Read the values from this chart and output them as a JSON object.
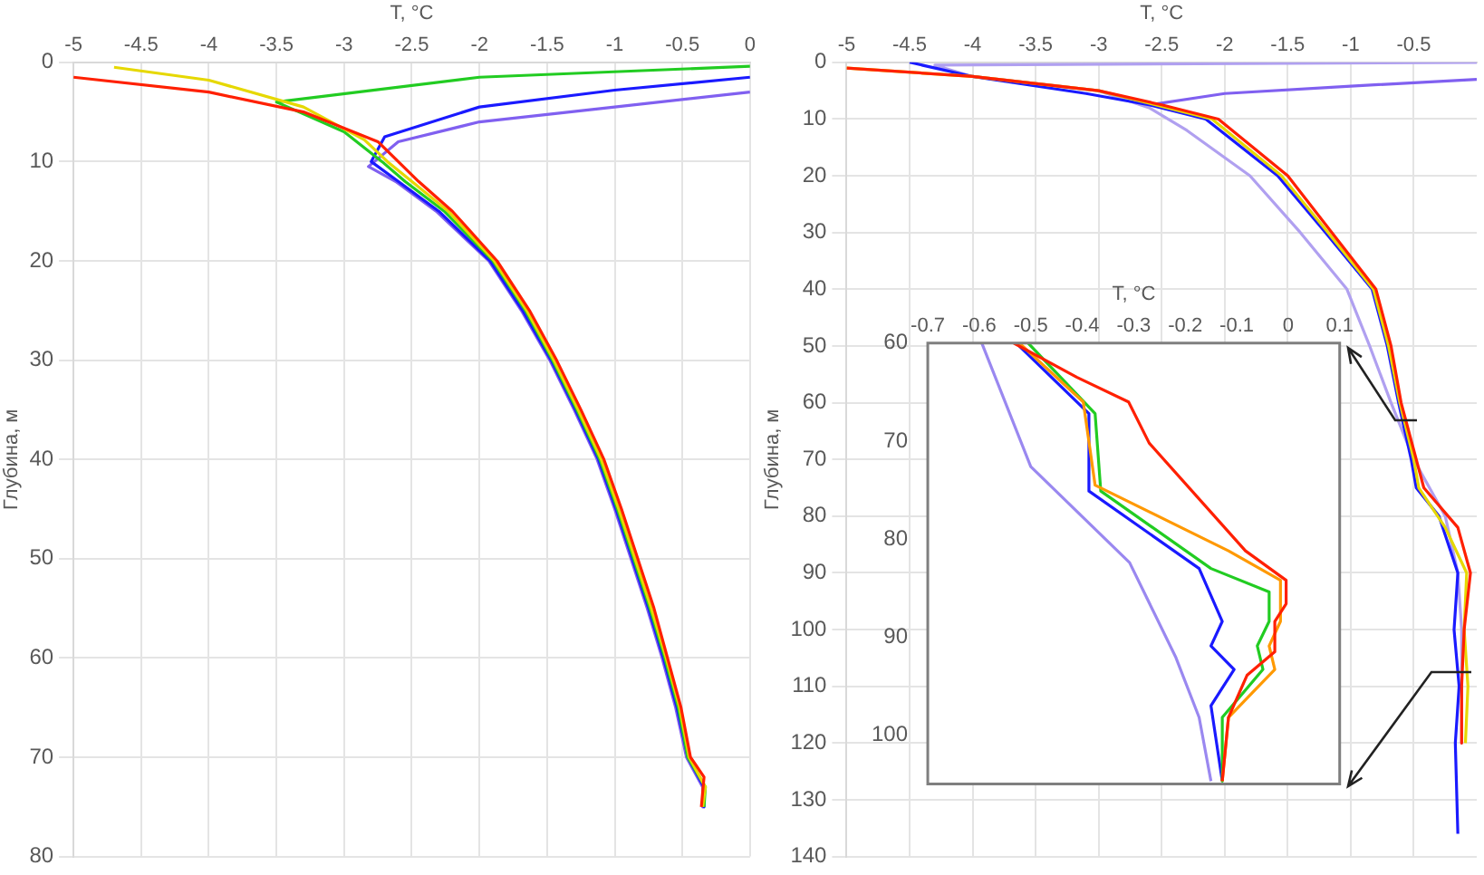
{
  "chart_data": [
    {
      "type": "line",
      "xlabel": "T, °C",
      "ylabel": "Глубина, м",
      "xlim": [
        -5,
        0
      ],
      "xticks": [
        -5,
        -4.5,
        -4,
        -3.5,
        -3,
        -2.5,
        -2,
        -1.5,
        -1,
        -0.5,
        0
      ],
      "ylim": [
        80,
        0
      ],
      "yticks": [
        0,
        10,
        20,
        30,
        40,
        50,
        60,
        70,
        80
      ],
      "grid": true,
      "legend": false,
      "series": [
        {
          "color": "#ff2000",
          "x": [
            -5,
            -4,
            -3.3,
            -2.75,
            -2.6,
            -2.45,
            -2.2,
            -1.87,
            -1.63,
            -1.43,
            -1.25,
            -1.08,
            -0.95,
            -0.83,
            -0.71,
            -0.61,
            -0.51,
            -0.44,
            -0.34,
            -0.36
          ],
          "values": [
            1.5,
            3,
            5,
            8,
            10,
            12,
            15,
            20,
            25,
            30,
            35,
            40,
            45,
            50,
            55,
            60,
            65,
            70,
            72,
            75
          ]
        },
        {
          "color": "#e6d800",
          "x": [
            -4.7,
            -4,
            -3.3,
            -2.85,
            -2.68,
            -2.5,
            -2.23,
            -1.89,
            -1.65,
            -1.45,
            -1.27,
            -1.1,
            -0.97,
            -0.85,
            -0.73,
            -0.62,
            -0.52,
            -0.45,
            -0.33,
            -0.35
          ],
          "values": [
            0.5,
            1.8,
            4.5,
            7.8,
            10,
            12,
            15,
            20,
            25,
            30,
            35,
            40,
            45,
            50,
            55,
            60,
            65,
            70,
            73,
            75
          ]
        },
        {
          "color": "#22cc22",
          "x": [
            0,
            -2,
            -3.5,
            -3,
            -2.72,
            -2.55,
            -2.26,
            -1.9,
            -1.66,
            -1.46,
            -1.28,
            -1.11,
            -0.98,
            -0.86,
            -0.74,
            -0.63,
            -0.53,
            -0.46,
            -0.33,
            -0.34
          ],
          "values": [
            0.4,
            1.5,
            4,
            7,
            10,
            12,
            15,
            20,
            25,
            30,
            35,
            40,
            45,
            50,
            55,
            60,
            65,
            70,
            73,
            75
          ]
        },
        {
          "color": "#1a1aff",
          "x": [
            0,
            -1,
            -2,
            -2.7,
            -2.8,
            -2.6,
            -2.3,
            -1.92,
            -1.68,
            -1.47,
            -1.29,
            -1.12,
            -0.99,
            -0.87,
            -0.75,
            -0.64,
            -0.54,
            -0.46,
            -0.34,
            -0.34
          ],
          "values": [
            1.5,
            2.8,
            4.5,
            7.5,
            10,
            12,
            15,
            20,
            25,
            30,
            35,
            40,
            45,
            50,
            55,
            60,
            65,
            70,
            73,
            75
          ]
        },
        {
          "color": "#8060f0",
          "x": [
            0,
            -1,
            -2,
            -2.6,
            -2.82,
            -2.62,
            -2.32,
            -1.93,
            -1.69,
            -1.48,
            -1.3,
            -1.13,
            -1,
            -0.88,
            -0.76,
            -0.65,
            -0.55,
            -0.47,
            -0.35,
            -0.35
          ],
          "values": [
            3,
            4.5,
            6,
            8,
            10.5,
            12,
            15,
            20,
            25,
            30,
            35,
            40,
            45,
            50,
            55,
            60,
            65,
            70,
            73,
            75
          ]
        }
      ]
    },
    {
      "type": "line",
      "xlabel": "T, °C",
      "ylabel": "Глубина, м",
      "xlim": [
        -5,
        0
      ],
      "xticks": [
        -5,
        -4.5,
        -4,
        -3.5,
        -3,
        -2.5,
        -2,
        -1.5,
        -1,
        -0.5
      ],
      "ylim": [
        140,
        0
      ],
      "yticks": [
        0,
        10,
        20,
        30,
        40,
        50,
        60,
        70,
        80,
        90,
        100,
        110,
        120,
        130,
        140
      ],
      "grid": true,
      "legend": false,
      "series": [
        {
          "color": "#ff2000",
          "x": [
            -5,
            -4,
            -3,
            -2.5,
            -2.05,
            -1.5,
            -1.15,
            -0.8,
            -0.68,
            -0.6,
            -0.48,
            -0.42,
            -0.15,
            -0.05,
            -0.1,
            -0.12,
            -0.12
          ],
          "values": [
            1,
            2.5,
            5,
            7.5,
            10,
            20,
            30,
            40,
            50,
            60,
            70,
            75,
            82,
            90,
            100,
            110,
            120
          ]
        },
        {
          "color": "#e6d800",
          "x": [
            -5,
            -4,
            -3,
            -2.55,
            -2.1,
            -1.55,
            -1.18,
            -0.82,
            -0.7,
            -0.61,
            -0.5,
            -0.46,
            -0.25,
            -0.08,
            -0.1,
            -0.07,
            -0.09
          ],
          "values": [
            1,
            2.5,
            5,
            7.5,
            10,
            20,
            30,
            40,
            50,
            60,
            70,
            75,
            82,
            90,
            100,
            110,
            120
          ]
        },
        {
          "color": "#1a1aff",
          "x": [
            -4.5,
            -4,
            -3.1,
            -2.6,
            -2.15,
            -1.58,
            -1.2,
            -0.83,
            -0.71,
            -0.62,
            -0.52,
            -0.48,
            -0.3,
            -0.15,
            -0.18,
            -0.14,
            -0.17,
            -0.15
          ],
          "values": [
            0,
            2.5,
            5.5,
            7.5,
            10,
            20,
            30,
            40,
            50,
            60,
            70,
            75,
            80,
            90,
            100,
            110,
            120,
            136
          ]
        },
        {
          "color": "#8060f0",
          "x": [
            0,
            -1,
            -2,
            -2.6
          ],
          "values": [
            3,
            4.2,
            5.5,
            7.5
          ]
        },
        {
          "color": "#b0a0f0",
          "x": [
            0,
            -4.3,
            -4,
            -3,
            -2.6,
            -2.3,
            -1.8,
            -1.4,
            -1.03,
            -0.85,
            -0.68,
            -0.5,
            -0.25,
            -0.15,
            -0.12,
            -0.12
          ],
          "values": [
            0,
            0.5,
            2.5,
            5,
            8,
            12,
            20,
            30,
            40,
            50,
            60,
            70,
            80,
            90,
            100,
            120
          ]
        }
      ]
    },
    {
      "type": "line",
      "xlabel": "T, °C",
      "xlim": [
        -0.7,
        0.1
      ],
      "xticks": [
        -0.7,
        -0.6,
        -0.5,
        -0.4,
        -0.3,
        -0.2,
        -0.1,
        0,
        0.1
      ],
      "ylim": [
        105,
        60
      ],
      "yticks": [
        60,
        70,
        80,
        90,
        100
      ],
      "legend": false,
      "series": [
        {
          "color": "#ff2000",
          "x": [
            -0.533,
            -0.41,
            -0.31,
            -0.27,
            -0.083,
            -0.004,
            -0.004,
            -0.026,
            -0.026,
            -0.08,
            -0.116,
            -0.128
          ],
          "values": [
            60,
            63.5,
            66,
            70.2,
            81.2,
            84.2,
            86.6,
            88.4,
            91.5,
            93.9,
            98.2,
            104.7
          ]
        },
        {
          "color": "#ff9900",
          "x": [
            -0.522,
            -0.398,
            -0.375,
            -0.116,
            -0.015,
            -0.015,
            -0.037,
            -0.026,
            -0.116,
            -0.128
          ],
          "values": [
            60,
            66,
            74.5,
            81.2,
            84.2,
            88.4,
            90.9,
            93.3,
            98.2,
            104.7
          ]
        },
        {
          "color": "#22cc22",
          "x": [
            -0.505,
            -0.375,
            -0.364,
            -0.15,
            -0.037,
            -0.037,
            -0.06,
            -0.049,
            -0.128,
            -0.128
          ],
          "values": [
            60,
            67.2,
            75.1,
            83,
            85.4,
            88.4,
            90.9,
            93.3,
            98.2,
            104.7
          ]
        },
        {
          "color": "#1a1aff",
          "x": [
            -0.528,
            -0.387,
            -0.387,
            -0.173,
            -0.128,
            -0.15,
            -0.105,
            -0.15,
            -0.128
          ],
          "values": [
            60,
            67.2,
            75.1,
            83,
            88.4,
            90.9,
            93.3,
            97,
            104.7
          ]
        },
        {
          "color": "#9a88f0",
          "x": [
            -0.595,
            -0.5,
            -0.308,
            -0.218,
            -0.173,
            -0.15
          ],
          "values": [
            60,
            72.6,
            82.4,
            92.1,
            98.2,
            104.7
          ]
        }
      ]
    }
  ]
}
